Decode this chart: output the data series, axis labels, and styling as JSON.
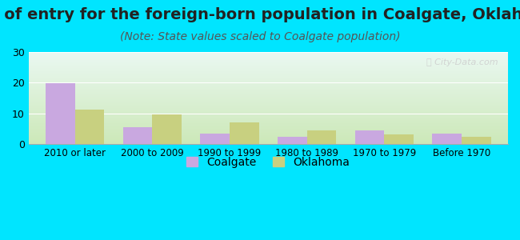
{
  "title": "Year of entry for the foreign-born population in Coalgate, Oklahoma",
  "subtitle": "(Note: State values scaled to Coalgate population)",
  "categories": [
    "2010 or later",
    "2000 to 2009",
    "1990 to 1999",
    "1980 to 1989",
    "1970 to 1979",
    "Before 1970"
  ],
  "coalgate_values": [
    19.8,
    5.5,
    3.5,
    2.5,
    4.5,
    3.5
  ],
  "oklahoma_values": [
    11.3,
    9.7,
    7.0,
    4.6,
    3.2,
    2.3
  ],
  "coalgate_color": "#c9a8e0",
  "oklahoma_color": "#c8d080",
  "background_outer": "#00e5ff",
  "background_inner_top": "#eaf8f2",
  "background_inner_bottom": "#cce8b8",
  "ylim": [
    0,
    30
  ],
  "yticks": [
    0,
    10,
    20,
    30
  ],
  "bar_width": 0.38,
  "title_fontsize": 14,
  "subtitle_fontsize": 10
}
